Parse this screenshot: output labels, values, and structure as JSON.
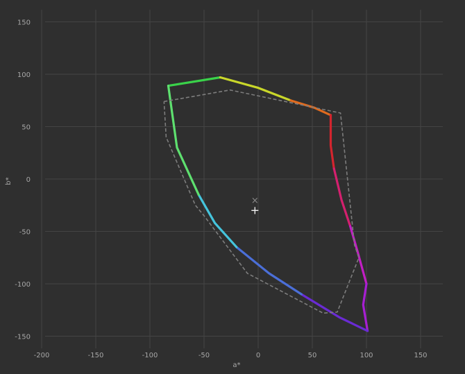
{
  "chart_data": {
    "type": "scatter",
    "title": "",
    "xlabel": "a*",
    "ylabel": "b*",
    "xlim": [
      -200,
      150
    ],
    "ylim": [
      -150,
      150
    ],
    "xticks": [
      -200,
      -150,
      -100,
      -50,
      0,
      50,
      100,
      150
    ],
    "yticks": [
      150,
      100,
      50,
      0,
      -50,
      -100,
      -150
    ],
    "x_tick_labels": [
      "-200",
      "-150",
      "-100",
      "-50",
      "0",
      "50",
      "100",
      "150"
    ],
    "y_tick_labels": [
      "150",
      "100",
      "50",
      "0",
      "-50",
      "-100",
      "-150"
    ],
    "grid": true,
    "background": "#2f2f2f",
    "series": [
      {
        "style": "solid-spectrum",
        "segments": [
          {
            "color": "#3ad24a",
            "points": [
              [
                -83,
                89
              ],
              [
                -35,
                97
              ]
            ]
          },
          {
            "color": "#c9d72a",
            "points": [
              [
                -35,
                97
              ],
              [
                0,
                87
              ],
              [
                30,
                75
              ]
            ]
          },
          {
            "color": "#e06b1f",
            "points": [
              [
                30,
                75
              ],
              [
                52,
                68
              ],
              [
                67,
                61
              ]
            ]
          },
          {
            "color": "#d4252e",
            "points": [
              [
                67,
                61
              ],
              [
                67,
                32
              ],
              [
                70,
                10
              ]
            ]
          },
          {
            "color": "#d4206e",
            "points": [
              [
                70,
                10
              ],
              [
                77,
                -20
              ],
              [
                85,
                -45
              ]
            ]
          },
          {
            "color": "#c21ec4",
            "points": [
              [
                85,
                -45
              ],
              [
                92,
                -70
              ],
              [
                100,
                -100
              ]
            ]
          },
          {
            "color": "#a71fd3",
            "points": [
              [
                100,
                -100
              ],
              [
                97,
                -120
              ],
              [
                101,
                -145
              ]
            ]
          },
          {
            "color": "#6a2bd4",
            "points": [
              [
                101,
                -145
              ],
              [
                75,
                -132
              ],
              [
                40,
                -110
              ]
            ]
          },
          {
            "color": "#4b6fd8",
            "points": [
              [
                40,
                -110
              ],
              [
                10,
                -90
              ],
              [
                -20,
                -65
              ]
            ]
          },
          {
            "color": "#45c4dc",
            "points": [
              [
                -20,
                -65
              ],
              [
                -40,
                -42
              ],
              [
                -55,
                -15
              ]
            ]
          },
          {
            "color": "#5ee06f",
            "points": [
              [
                -55,
                -15
              ],
              [
                -75,
                30
              ],
              [
                -83,
                89
              ]
            ]
          }
        ]
      },
      {
        "style": "dashed",
        "color": "#7d7d7d",
        "points": [
          [
            -87,
            74
          ],
          [
            -26,
            85
          ],
          [
            76,
            63
          ],
          [
            89,
            -63
          ],
          [
            93,
            -75
          ],
          [
            73,
            -127
          ],
          [
            60,
            -128
          ],
          [
            -10,
            -90
          ],
          [
            -50,
            -35
          ],
          [
            -58,
            -25
          ],
          [
            -85,
            40
          ],
          [
            -87,
            74
          ]
        ]
      }
    ],
    "markers": [
      {
        "symbol": "×",
        "color": "#8a8a8a",
        "x": -3,
        "y": -20
      },
      {
        "symbol": "+",
        "color": "#f2f2f2",
        "x": -3,
        "y": -30
      }
    ]
  }
}
